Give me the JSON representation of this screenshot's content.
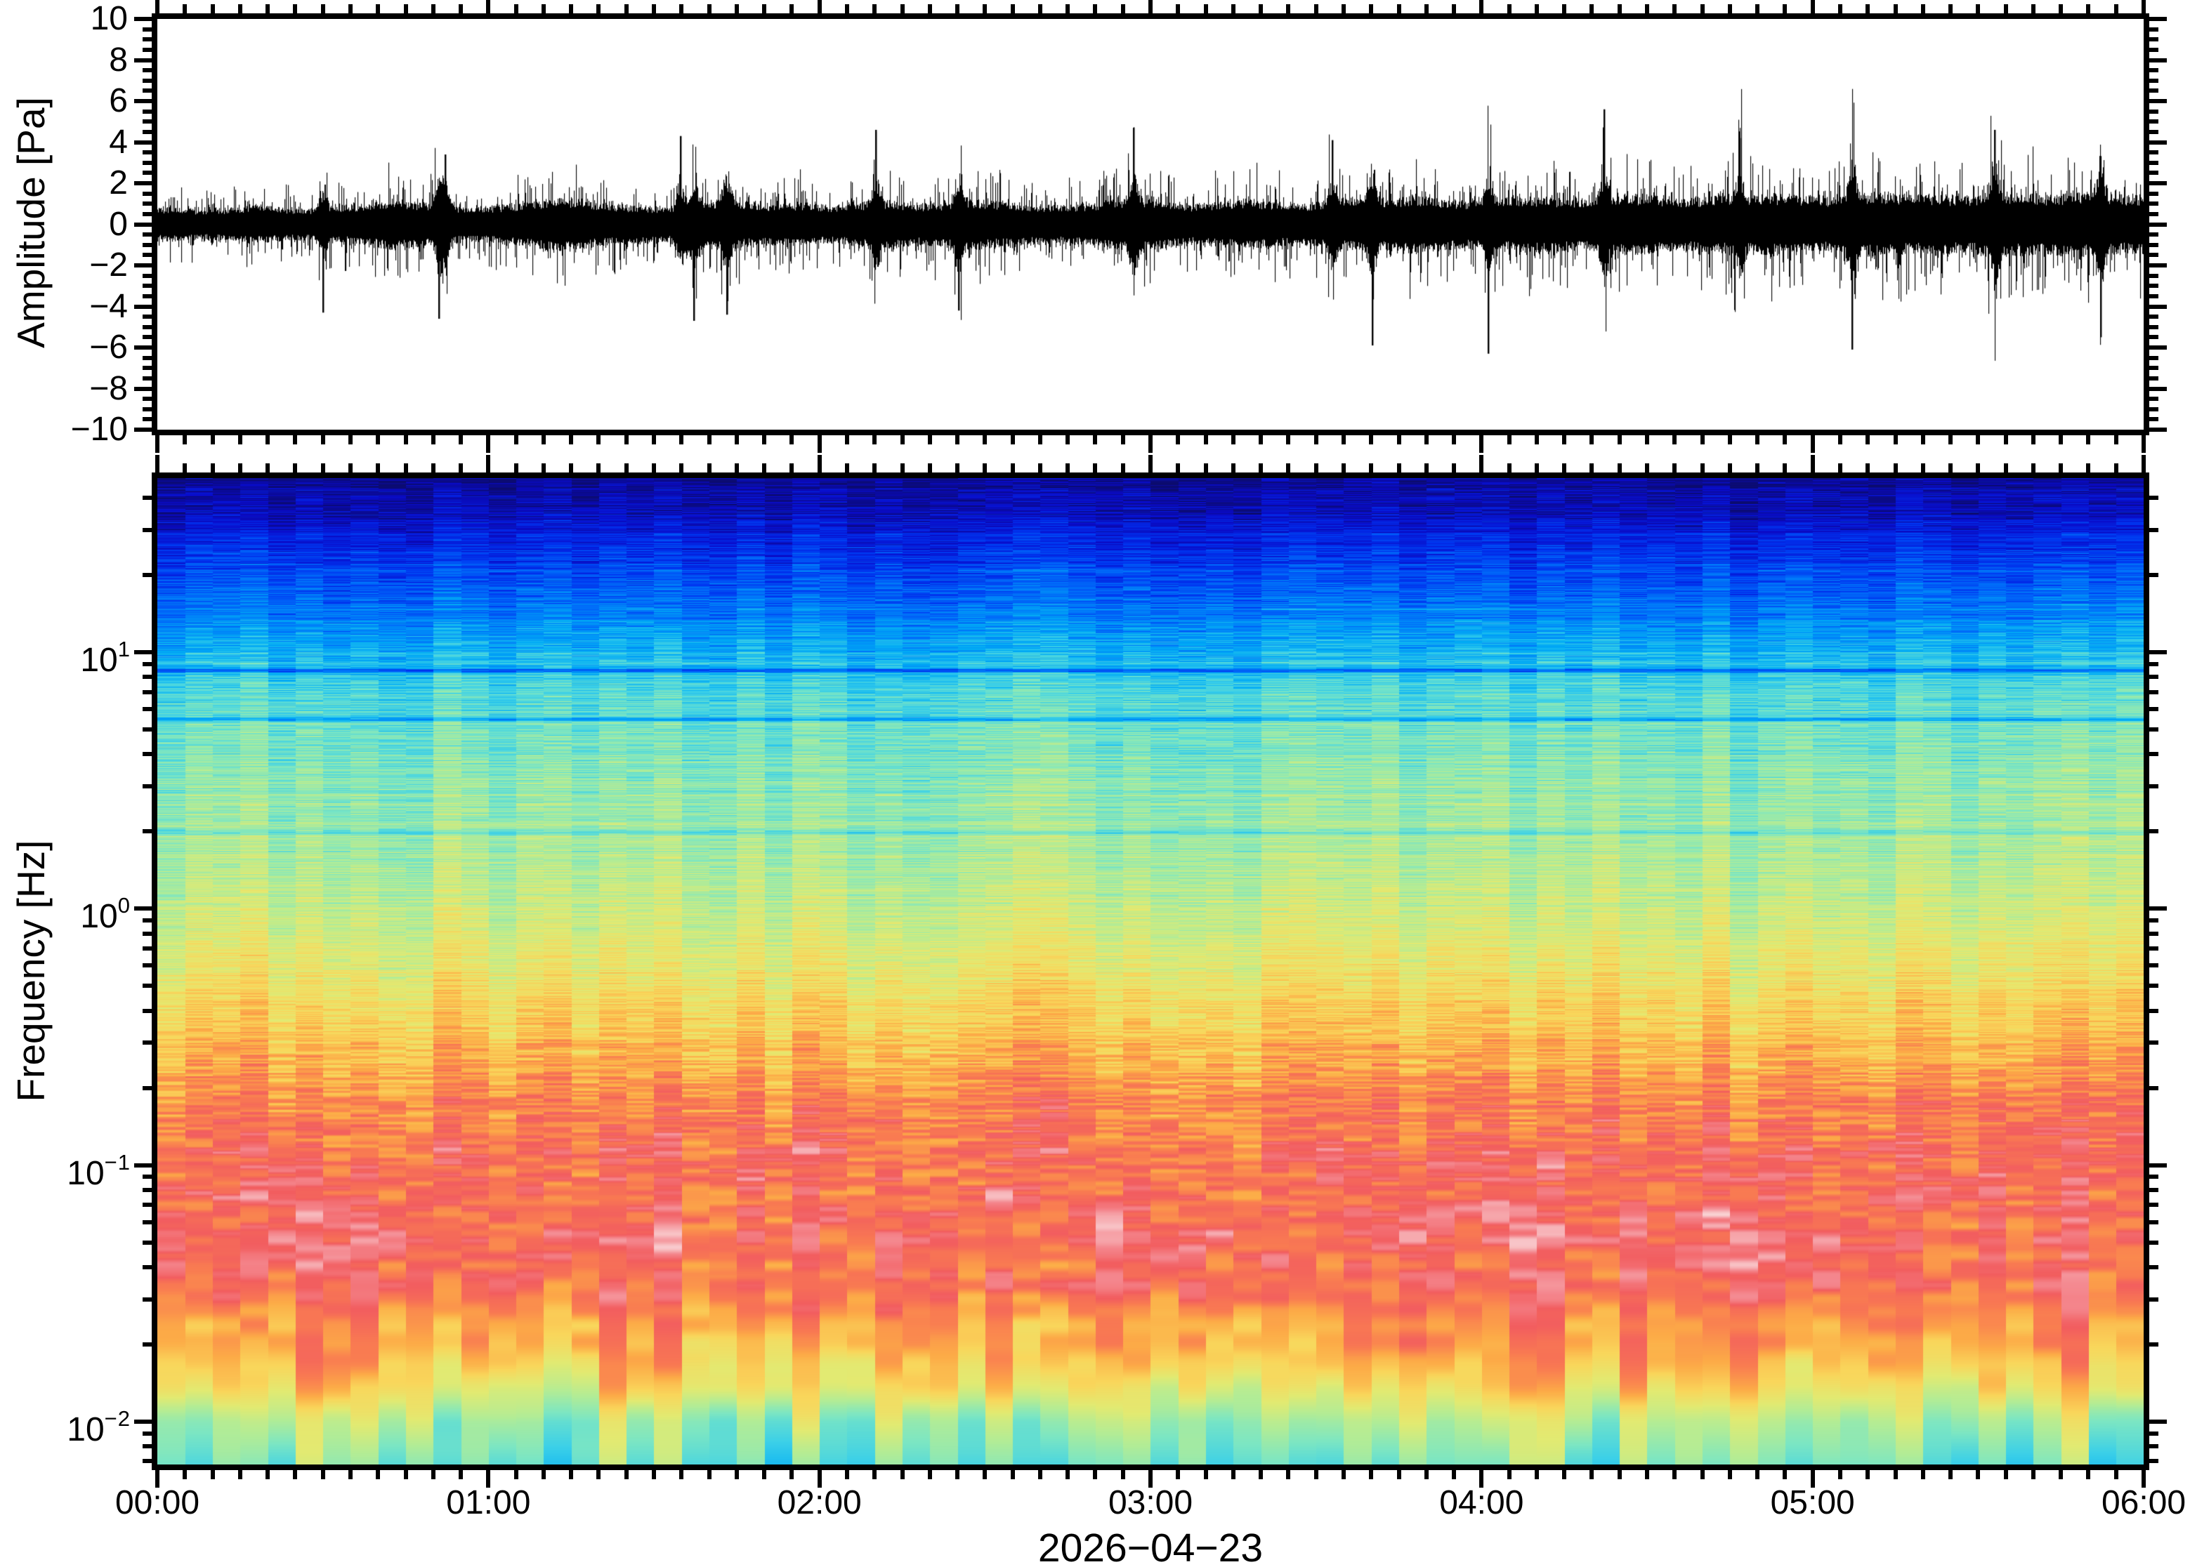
{
  "figure": {
    "background": "#ffffff",
    "frame_color": "#000000",
    "trace_color": "#000000",
    "date_label": "2026−04−23"
  },
  "waveform_panel": {
    "ylabel": "Amplitude [Pa]",
    "ylim": [
      -10,
      10
    ],
    "ytick_major_step": 2,
    "ytick_minor_step": 0.5,
    "ytick_labels": [
      "10",
      "8",
      "6",
      "4",
      "2",
      "0",
      "−2",
      "−4",
      "−6",
      "−8",
      "−10"
    ],
    "ytick_values": [
      10,
      8,
      6,
      4,
      2,
      0,
      -2,
      -4,
      -6,
      -8,
      -10
    ]
  },
  "spectrogram_panel": {
    "ylabel": "Frequency [Hz]",
    "flim": [
      0.0068,
      47.75
    ],
    "ytick_labels": [
      {
        "base": "10",
        "exp": "1",
        "value": 10
      },
      {
        "base": "10",
        "exp": "0",
        "value": 1
      },
      {
        "base": "10",
        "exp": "−1",
        "value": 0.1
      },
      {
        "base": "10",
        "exp": "−2",
        "value": 0.01
      }
    ]
  },
  "time_axis": {
    "hours_span": 6,
    "tick_major_minutes": 60,
    "tick_minor_minutes": 5,
    "hour_labels": [
      "00:00",
      "01:00",
      "02:00",
      "03:00",
      "04:00",
      "05:00",
      "06:00"
    ]
  },
  "chart_data": [
    {
      "type": "line",
      "name": "infrasound-waveform",
      "xlabel_date": "2026−04−23",
      "x_range_hours": [
        0,
        6
      ],
      "ylabel": "Amplitude [Pa]",
      "ylim": [
        -10,
        10
      ],
      "seed": 42,
      "envelope_bin_minutes": 5,
      "envelope_pa": [
        1.0,
        0.9,
        0.95,
        1.1,
        1.0,
        0.9,
        1.05,
        1.2,
        1.5,
        1.3,
        1.1,
        1.0,
        1.15,
        1.3,
        1.6,
        1.4,
        1.2,
        1.1,
        1.0,
        1.3,
        1.5,
        1.3,
        1.2,
        1.25,
        1.1,
        1.3,
        1.4,
        1.2,
        1.3,
        1.5,
        1.3,
        1.2,
        1.1,
        1.2,
        1.4,
        1.6,
        1.4,
        1.2,
        1.3,
        1.5,
        1.3,
        1.2,
        1.4,
        1.6,
        1.5,
        1.7,
        1.5,
        1.4,
        1.5,
        1.7,
        1.6,
        1.5,
        1.6,
        1.8,
        1.6,
        1.5,
        1.7,
        1.6,
        1.8,
        1.7,
        1.6,
        1.8,
        1.9,
        1.7,
        1.8,
        1.6,
        1.9,
        1.8,
        1.7,
        1.9,
        1.8,
        1.7
      ],
      "transients": [
        {
          "t_hours": 0.5,
          "peak_pa": -4.3
        },
        {
          "t_hours": 0.85,
          "peak_pa": -4.6
        },
        {
          "t_hours": 0.87,
          "peak_pa": 3.4
        },
        {
          "t_hours": 1.58,
          "peak_pa": 4.3
        },
        {
          "t_hours": 1.62,
          "peak_pa": -4.7
        },
        {
          "t_hours": 1.72,
          "peak_pa": -4.4
        },
        {
          "t_hours": 2.17,
          "peak_pa": 4.6
        },
        {
          "t_hours": 2.42,
          "peak_pa": -4.2
        },
        {
          "t_hours": 2.95,
          "peak_pa": 4.7
        },
        {
          "t_hours": 3.55,
          "peak_pa": 4.1
        },
        {
          "t_hours": 3.67,
          "peak_pa": -5.9
        },
        {
          "t_hours": 4.02,
          "peak_pa": -6.3
        },
        {
          "t_hours": 4.37,
          "peak_pa": 5.6
        },
        {
          "t_hours": 4.78,
          "peak_pa": 4.2
        },
        {
          "t_hours": 5.12,
          "peak_pa": -6.1
        },
        {
          "t_hours": 5.55,
          "peak_pa": 4.6
        },
        {
          "t_hours": 5.87,
          "peak_pa": -5.5
        }
      ],
      "core_band_pa": 0.8
    },
    {
      "type": "heatmap",
      "name": "spectrogram",
      "x_range_hours": [
        0,
        6
      ],
      "columns": 72,
      "ylabel": "Frequency [Hz]",
      "freq_range_hz": [
        0.0068,
        47.75
      ],
      "freq_scale": "log",
      "fft_bin_hz": 0.0034,
      "seed": 7,
      "level_profile_logf": [
        [
          1.7,
          0.02
        ],
        [
          1.55,
          0.06
        ],
        [
          1.4,
          0.12
        ],
        [
          1.2,
          0.2
        ],
        [
          1.0,
          0.3
        ],
        [
          0.8,
          0.38
        ],
        [
          0.6,
          0.43
        ],
        [
          0.3,
          0.47
        ],
        [
          0.0,
          0.52
        ],
        [
          -0.3,
          0.6
        ],
        [
          -0.55,
          0.68
        ],
        [
          -0.8,
          0.76
        ],
        [
          -1.0,
          0.8
        ],
        [
          -1.3,
          0.82
        ],
        [
          -1.5,
          0.79
        ],
        [
          -1.7,
          0.71
        ],
        [
          -1.85,
          0.62
        ],
        [
          -2.0,
          0.5
        ],
        [
          -2.2,
          0.41
        ]
      ],
      "striation_amp_logf": [
        [
          1.7,
          0.05
        ],
        [
          1.0,
          0.06
        ],
        [
          0.3,
          0.05
        ],
        [
          -0.3,
          0.05
        ],
        [
          -0.8,
          0.07
        ],
        [
          -1.5,
          0.06
        ],
        [
          -2.2,
          0.03
        ]
      ],
      "row_line_amp_logf": [
        [
          1.7,
          0.02
        ],
        [
          1.3,
          0.035
        ],
        [
          0.8,
          0.045
        ],
        [
          0.0,
          0.035
        ],
        [
          -0.8,
          0.02
        ],
        [
          -2.2,
          0.01
        ]
      ],
      "column_amp_logf": [
        [
          1.7,
          0.015
        ],
        [
          1.0,
          0.03
        ],
        [
          0.0,
          0.04
        ],
        [
          -0.8,
          0.05
        ],
        [
          -1.4,
          0.06
        ],
        [
          -1.8,
          0.1
        ],
        [
          -2.2,
          0.1
        ]
      ],
      "patch_amp_logf": [
        [
          -0.6,
          0.0
        ],
        [
          -0.9,
          0.07
        ],
        [
          -1.2,
          0.11
        ],
        [
          -1.45,
          0.08
        ],
        [
          -1.6,
          0.0
        ]
      ],
      "dark_lines": [
        {
          "logf": 0.93,
          "drop": 0.16
        },
        {
          "logf": 0.74,
          "drop": 0.12
        },
        {
          "logf": 0.3,
          "drop": 0.09
        }
      ],
      "colormap_stops": [
        [
          0.0,
          "#0b0b6e"
        ],
        [
          0.06,
          "#0a0ac8"
        ],
        [
          0.13,
          "#0034f0"
        ],
        [
          0.2,
          "#0070fa"
        ],
        [
          0.28,
          "#00aaf5"
        ],
        [
          0.35,
          "#3cd0e8"
        ],
        [
          0.42,
          "#7ce6c3"
        ],
        [
          0.49,
          "#b2ec96"
        ],
        [
          0.56,
          "#e2ea72"
        ],
        [
          0.63,
          "#f9d65b"
        ],
        [
          0.7,
          "#fcab47"
        ],
        [
          0.77,
          "#f97c51"
        ],
        [
          0.84,
          "#f25d5f"
        ],
        [
          0.9,
          "#f4888f"
        ],
        [
          0.95,
          "#f7b6ba"
        ],
        [
          1.0,
          "#fbe3e3"
        ]
      ]
    }
  ]
}
